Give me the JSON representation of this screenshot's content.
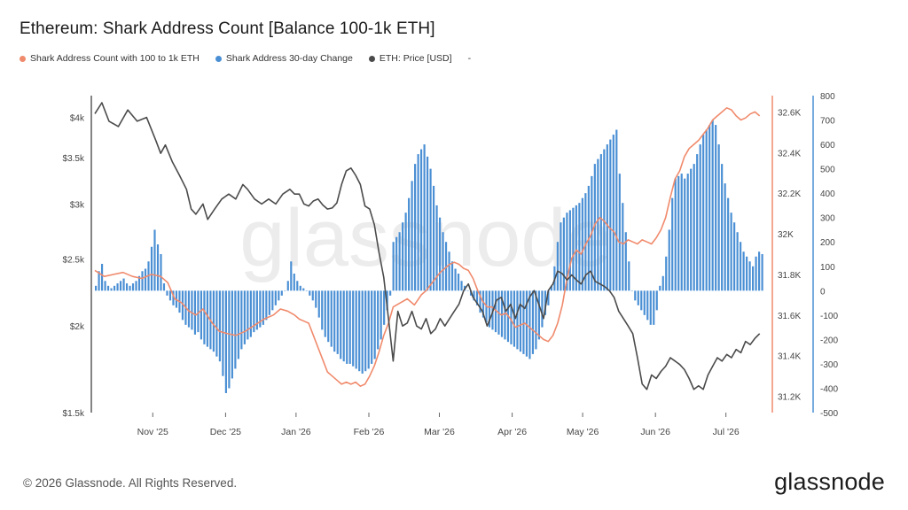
{
  "title": "Ethereum: Shark Address Count [Balance 100-1k ETH]",
  "legend": [
    {
      "label": "Shark Address Count with 100 to 1k ETH",
      "color": "#f08a6c"
    },
    {
      "label": "Shark Address 30-day Change",
      "color": "#4a8fd4"
    },
    {
      "label": "ETH: Price [USD]",
      "color": "#4b4b4b"
    },
    {
      "label": "-",
      "color": ""
    }
  ],
  "watermark": "glassnode",
  "footer": "© 2026 Glassnode. All Rights Reserved.",
  "brand": "glassnode",
  "chart_data": {
    "type": "line",
    "x_ticks": [
      "Nov '25",
      "Dec '25",
      "Jan '26",
      "Feb '26",
      "Mar '26",
      "Apr '26",
      "May '26",
      "Jun '26",
      "Jul '26"
    ],
    "left_axis": {
      "ticks": [
        "$1.5k",
        "$2k",
        "$2.5k",
        "$3k",
        "$3.5k",
        "$4k"
      ],
      "scale": "log",
      "range": [
        1500,
        4300
      ]
    },
    "right_axis_count": {
      "ticks": [
        "31.2K",
        "31.4K",
        "31.6K",
        "31.8K",
        "32K",
        "32.2K",
        "32.4K",
        "32.6K"
      ],
      "range": [
        31120,
        32680
      ]
    },
    "right_axis_change": {
      "ticks": [
        "-500",
        "-400",
        "-300",
        "-200",
        "-100",
        "0",
        "100",
        "200",
        "300",
        "400",
        "500",
        "600",
        "700",
        "800"
      ],
      "range": [
        -500,
        800
      ]
    },
    "series": [
      {
        "name": "ETH: Price [USD]",
        "color": "#4b4b4b",
        "axis": "left",
        "points": [
          [
            0,
            4050
          ],
          [
            3,
            4200
          ],
          [
            6,
            3950
          ],
          [
            10,
            3880
          ],
          [
            14,
            4100
          ],
          [
            18,
            3950
          ],
          [
            22,
            4000
          ],
          [
            26,
            3700
          ],
          [
            28,
            3550
          ],
          [
            30,
            3650
          ],
          [
            33,
            3450
          ],
          [
            36,
            3300
          ],
          [
            39,
            3150
          ],
          [
            41,
            2950
          ],
          [
            43,
            2900
          ],
          [
            46,
            3000
          ],
          [
            48,
            2850
          ],
          [
            51,
            2950
          ],
          [
            54,
            3050
          ],
          [
            57,
            3100
          ],
          [
            60,
            3050
          ],
          [
            63,
            3200
          ],
          [
            65,
            3150
          ],
          [
            68,
            3050
          ],
          [
            71,
            3000
          ],
          [
            74,
            3050
          ],
          [
            77,
            3000
          ],
          [
            80,
            3100
          ],
          [
            83,
            3150
          ],
          [
            85,
            3100
          ],
          [
            87,
            3100
          ],
          [
            89,
            3000
          ],
          [
            91,
            2980
          ],
          [
            93,
            3030
          ],
          [
            95,
            3050
          ],
          [
            97,
            2990
          ],
          [
            99,
            2950
          ],
          [
            101,
            2960
          ],
          [
            103,
            3010
          ],
          [
            105,
            3200
          ],
          [
            107,
            3350
          ],
          [
            109,
            3380
          ],
          [
            111,
            3300
          ],
          [
            113,
            3200
          ],
          [
            115,
            2980
          ],
          [
            117,
            2950
          ],
          [
            119,
            2800
          ],
          [
            121,
            2550
          ],
          [
            123,
            2350
          ],
          [
            125,
            2050
          ],
          [
            127,
            1780
          ],
          [
            129,
            2100
          ],
          [
            131,
            2000
          ],
          [
            133,
            2020
          ],
          [
            135,
            2100
          ],
          [
            137,
            2000
          ],
          [
            139,
            1980
          ],
          [
            141,
            2050
          ],
          [
            143,
            1950
          ],
          [
            145,
            1980
          ],
          [
            147,
            2050
          ],
          [
            149,
            2000
          ],
          [
            151,
            2050
          ],
          [
            153,
            2100
          ],
          [
            155,
            2150
          ],
          [
            157,
            2250
          ],
          [
            159,
            2300
          ],
          [
            161,
            2200
          ],
          [
            163,
            2150
          ],
          [
            165,
            2100
          ],
          [
            167,
            2000
          ],
          [
            169,
            2080
          ],
          [
            171,
            2180
          ],
          [
            173,
            2200
          ],
          [
            175,
            2100
          ],
          [
            177,
            2150
          ],
          [
            179,
            2050
          ],
          [
            181,
            2150
          ],
          [
            183,
            2120
          ],
          [
            185,
            2200
          ],
          [
            187,
            2250
          ],
          [
            189,
            2150
          ],
          [
            191,
            2050
          ],
          [
            193,
            2250
          ],
          [
            195,
            2300
          ],
          [
            197,
            2400
          ],
          [
            199,
            2380
          ],
          [
            201,
            2330
          ],
          [
            203,
            2370
          ],
          [
            205,
            2330
          ],
          [
            207,
            2300
          ],
          [
            209,
            2370
          ],
          [
            211,
            2400
          ],
          [
            213,
            2320
          ],
          [
            215,
            2300
          ],
          [
            217,
            2280
          ],
          [
            219,
            2250
          ],
          [
            221,
            2200
          ],
          [
            223,
            2100
          ],
          [
            225,
            2050
          ],
          [
            227,
            2000
          ],
          [
            229,
            1950
          ],
          [
            231,
            1800
          ],
          [
            233,
            1650
          ],
          [
            235,
            1620
          ],
          [
            237,
            1700
          ],
          [
            239,
            1680
          ],
          [
            241,
            1720
          ],
          [
            243,
            1750
          ],
          [
            245,
            1800
          ],
          [
            247,
            1780
          ],
          [
            249,
            1760
          ],
          [
            251,
            1730
          ],
          [
            253,
            1680
          ],
          [
            255,
            1620
          ],
          [
            257,
            1640
          ],
          [
            259,
            1620
          ],
          [
            261,
            1700
          ],
          [
            263,
            1750
          ],
          [
            265,
            1800
          ],
          [
            267,
            1780
          ],
          [
            269,
            1820
          ],
          [
            271,
            1800
          ],
          [
            273,
            1850
          ],
          [
            275,
            1830
          ],
          [
            277,
            1900
          ],
          [
            279,
            1880
          ],
          [
            281,
            1920
          ],
          [
            283,
            1950
          ]
        ]
      },
      {
        "name": "Shark Address Count with 100 to 1k ETH",
        "color": "#f08a6c",
        "axis": "right_count",
        "points": [
          [
            0,
            31820
          ],
          [
            4,
            31790
          ],
          [
            8,
            31800
          ],
          [
            12,
            31810
          ],
          [
            16,
            31790
          ],
          [
            20,
            31780
          ],
          [
            24,
            31800
          ],
          [
            28,
            31790
          ],
          [
            31,
            31760
          ],
          [
            34,
            31680
          ],
          [
            37,
            31660
          ],
          [
            40,
            31620
          ],
          [
            43,
            31600
          ],
          [
            46,
            31630
          ],
          [
            50,
            31560
          ],
          [
            53,
            31520
          ],
          [
            56,
            31510
          ],
          [
            60,
            31500
          ],
          [
            64,
            31520
          ],
          [
            68,
            31550
          ],
          [
            72,
            31580
          ],
          [
            76,
            31600
          ],
          [
            79,
            31630
          ],
          [
            82,
            31620
          ],
          [
            85,
            31600
          ],
          [
            87,
            31580
          ],
          [
            89,
            31570
          ],
          [
            91,
            31560
          ],
          [
            93,
            31500
          ],
          [
            95,
            31440
          ],
          [
            97,
            31380
          ],
          [
            99,
            31320
          ],
          [
            101,
            31300
          ],
          [
            103,
            31280
          ],
          [
            105,
            31260
          ],
          [
            107,
            31270
          ],
          [
            109,
            31260
          ],
          [
            111,
            31270
          ],
          [
            113,
            31250
          ],
          [
            115,
            31260
          ],
          [
            117,
            31300
          ],
          [
            119,
            31350
          ],
          [
            121,
            31420
          ],
          [
            123,
            31500
          ],
          [
            125,
            31560
          ],
          [
            127,
            31640
          ],
          [
            130,
            31660
          ],
          [
            133,
            31680
          ],
          [
            136,
            31650
          ],
          [
            139,
            31700
          ],
          [
            141,
            31720
          ],
          [
            143,
            31750
          ],
          [
            145,
            31780
          ],
          [
            147,
            31810
          ],
          [
            149,
            31830
          ],
          [
            151,
            31850
          ],
          [
            153,
            31860
          ],
          [
            155,
            31850
          ],
          [
            157,
            31830
          ],
          [
            159,
            31820
          ],
          [
            161,
            31780
          ],
          [
            163,
            31720
          ],
          [
            165,
            31670
          ],
          [
            167,
            31640
          ],
          [
            169,
            31640
          ],
          [
            171,
            31620
          ],
          [
            173,
            31600
          ],
          [
            175,
            31610
          ],
          [
            177,
            31580
          ],
          [
            179,
            31540
          ],
          [
            181,
            31550
          ],
          [
            183,
            31560
          ],
          [
            185,
            31540
          ],
          [
            187,
            31520
          ],
          [
            189,
            31500
          ],
          [
            191,
            31480
          ],
          [
            193,
            31470
          ],
          [
            195,
            31500
          ],
          [
            197,
            31560
          ],
          [
            199,
            31650
          ],
          [
            201,
            31780
          ],
          [
            203,
            31880
          ],
          [
            205,
            31920
          ],
          [
            207,
            31900
          ],
          [
            209,
            31950
          ],
          [
            211,
            31990
          ],
          [
            213,
            32050
          ],
          [
            215,
            32080
          ],
          [
            217,
            32060
          ],
          [
            219,
            32030
          ],
          [
            221,
            32010
          ],
          [
            223,
            31960
          ],
          [
            225,
            31950
          ],
          [
            227,
            31970
          ],
          [
            229,
            31960
          ],
          [
            231,
            31950
          ],
          [
            233,
            31970
          ],
          [
            235,
            31960
          ],
          [
            237,
            31950
          ],
          [
            239,
            31980
          ],
          [
            241,
            32020
          ],
          [
            243,
            32080
          ],
          [
            245,
            32180
          ],
          [
            247,
            32270
          ],
          [
            249,
            32310
          ],
          [
            251,
            32380
          ],
          [
            253,
            32420
          ],
          [
            255,
            32440
          ],
          [
            257,
            32460
          ],
          [
            259,
            32490
          ],
          [
            261,
            32520
          ],
          [
            263,
            32560
          ],
          [
            265,
            32580
          ],
          [
            267,
            32600
          ],
          [
            269,
            32620
          ],
          [
            271,
            32610
          ],
          [
            273,
            32580
          ],
          [
            275,
            32560
          ],
          [
            277,
            32570
          ],
          [
            279,
            32590
          ],
          [
            281,
            32600
          ],
          [
            283,
            32580
          ]
        ]
      }
    ],
    "bars": {
      "name": "Shark Address 30-day Change",
      "color": "#4a8fd4",
      "axis": "right_change",
      "values": [
        20,
        80,
        110,
        40,
        20,
        10,
        20,
        30,
        40,
        50,
        30,
        20,
        30,
        40,
        60,
        80,
        90,
        120,
        180,
        250,
        190,
        150,
        30,
        -20,
        -40,
        -60,
        -70,
        -90,
        -120,
        -140,
        -150,
        -160,
        -180,
        -170,
        -200,
        -220,
        -230,
        -240,
        -250,
        -270,
        -290,
        -350,
        -420,
        -400,
        -360,
        -320,
        -280,
        -240,
        -220,
        -200,
        -190,
        -170,
        -160,
        -150,
        -140,
        -120,
        -100,
        -80,
        -60,
        -40,
        -20,
        0,
        40,
        120,
        70,
        40,
        20,
        10,
        0,
        -20,
        -40,
        -70,
        -110,
        -160,
        -190,
        -210,
        -230,
        -250,
        -260,
        -280,
        -290,
        -300,
        -300,
        -310,
        -320,
        -330,
        -340,
        -330,
        -320,
        -300,
        -280,
        -240,
        -200,
        -140,
        -80,
        -20,
        200,
        220,
        240,
        280,
        320,
        380,
        450,
        520,
        560,
        580,
        600,
        550,
        500,
        430,
        350,
        300,
        240,
        200,
        160,
        120,
        90,
        70,
        40,
        20,
        0,
        -20,
        -40,
        -60,
        -90,
        -110,
        -130,
        -150,
        -160,
        -170,
        -180,
        -190,
        -200,
        -210,
        -220,
        -230,
        -240,
        -250,
        -260,
        -270,
        -280,
        -260,
        -240,
        -200,
        -150,
        -100,
        -60,
        20,
        100,
        200,
        280,
        300,
        320,
        330,
        340,
        350,
        360,
        380,
        400,
        430,
        470,
        520,
        540,
        560,
        580,
        600,
        620,
        640,
        660,
        480,
        360,
        240,
        120,
        0,
        -40,
        -60,
        -80,
        -100,
        -120,
        -140,
        -140,
        -80,
        20,
        60,
        140,
        250,
        380,
        460,
        470,
        480,
        460,
        480,
        500,
        520,
        560,
        600,
        640,
        660,
        680,
        700,
        680,
        600,
        520,
        440,
        380,
        320,
        280,
        240,
        200,
        160,
        140,
        120,
        100,
        140,
        160,
        150
      ]
    }
  }
}
